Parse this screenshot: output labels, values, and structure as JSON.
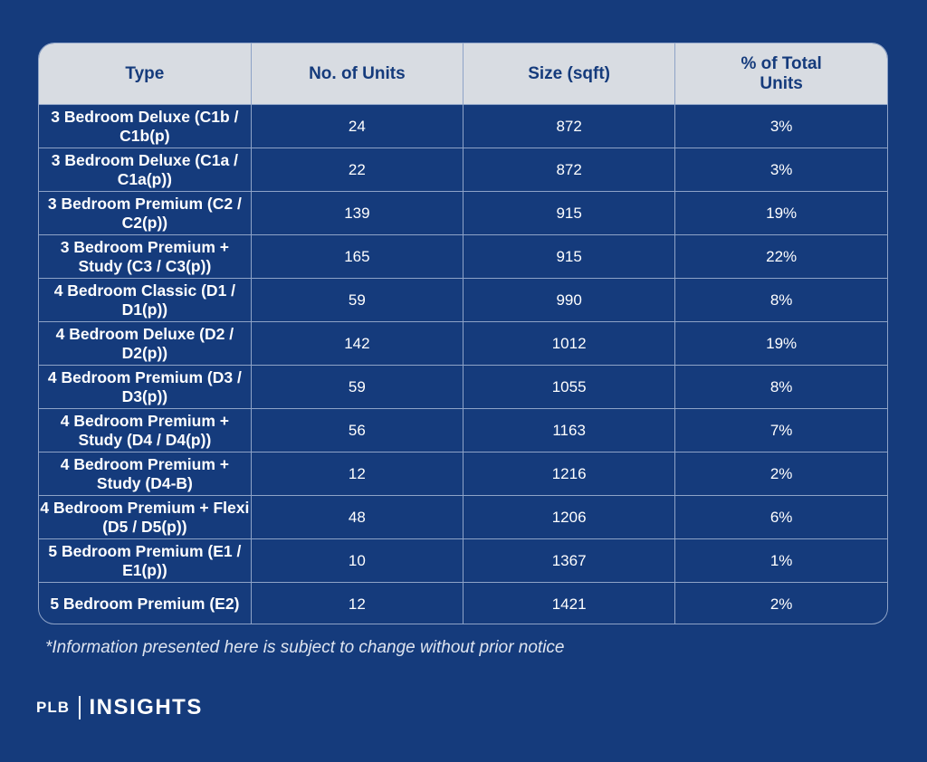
{
  "table": {
    "header": [
      "Type",
      "No. of Units",
      "Size (sqft)",
      "% of Total Units"
    ],
    "rows": [
      [
        "3 Bedroom Deluxe (C1b / C1b(p)",
        "24",
        "872",
        "3%"
      ],
      [
        "3 Bedroom Deluxe (C1a / C1a(p))",
        "22",
        "872",
        "3%"
      ],
      [
        "3 Bedroom Premium (C2 / C2(p))",
        "139",
        "915",
        "19%"
      ],
      [
        "3 Bedroom Premium + Study (C3 / C3(p))",
        "165",
        "915",
        "22%"
      ],
      [
        "4 Bedroom Classic (D1 / D1(p))",
        "59",
        "990",
        "8%"
      ],
      [
        "4 Bedroom Deluxe (D2 / D2(p))",
        "142",
        "1012",
        "19%"
      ],
      [
        "4 Bedroom Premium (D3 / D3(p))",
        "59",
        "1055",
        "8%"
      ],
      [
        "4 Bedroom Premium + Study (D4 / D4(p))",
        "56",
        "1163",
        "7%"
      ],
      [
        "4 Bedroom Premium + Study (D4-B)",
        "12",
        "1216",
        "2%"
      ],
      [
        "4 Bedroom Premium + Flexi (D5 / D5(p))",
        "48",
        "1206",
        "6%"
      ],
      [
        "5 Bedroom Premium (E1 / E1(p))",
        "10",
        "1367",
        "1%"
      ],
      [
        "5 Bedroom Premium (E2)",
        "12",
        "1421",
        "2%"
      ]
    ]
  },
  "footnote": "*Information presented here is subject to change without prior notice",
  "brand": {
    "left": "PLB",
    "right": "INSIGHTS"
  }
}
